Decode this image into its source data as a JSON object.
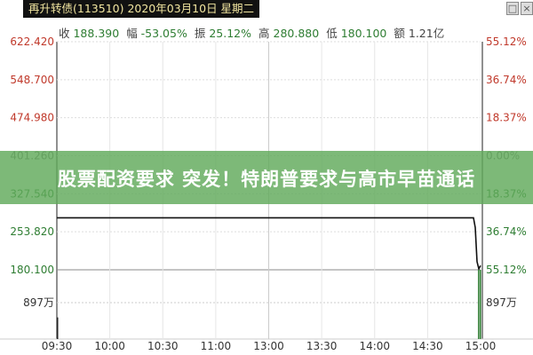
{
  "title": "再升转债(113510) 2020年03月10日 星期二",
  "window_buttons": [
    "□",
    "×"
  ],
  "stats": [
    {
      "label": "收",
      "value": "188.390"
    },
    {
      "label": "幅",
      "value": "-53.05%"
    },
    {
      "label": "振",
      "value": "25.12%"
    },
    {
      "label": "高",
      "value": "280.880"
    },
    {
      "label": "低",
      "value": "180.100"
    },
    {
      "label": "额",
      "value": "1.21亿"
    }
  ],
  "banner": "股票配资要求 突发！特朗普要求与高市早苗通话",
  "colors": {
    "up": "#c0392b",
    "down": "#2e7d32",
    "line": "#111111",
    "volume": "#2e7d32",
    "banner": "#60aa5a"
  },
  "chart_data": {
    "type": "line",
    "left_ticks": [
      "622.420",
      "548.700",
      "474.980",
      "401.260",
      "327.540",
      "253.820",
      "180.100"
    ],
    "right_ticks": [
      "55.12%",
      "36.74%",
      "18.37%",
      "0.00%",
      "18.37%",
      "36.74%",
      "55.12%"
    ],
    "volume_tick": "897万",
    "x_ticks": [
      "09:30",
      "10:00",
      "10:30",
      "11:00",
      "13:00",
      "13:30",
      "14:00",
      "14:30",
      "15:00"
    ],
    "ylim": [
      180.1,
      622.42
    ],
    "grid": true,
    "price_series": [
      {
        "t": "09:30",
        "v": 280.88
      },
      {
        "t": "14:56",
        "v": 280.88
      },
      {
        "t": "14:57",
        "v": 262.0
      },
      {
        "t": "14:58",
        "v": 196.0
      },
      {
        "t": "14:59",
        "v": 182.0
      },
      {
        "t": "15:00",
        "v": 188.39
      }
    ],
    "volume_series": [
      {
        "t": "09:30",
        "v": 500
      },
      {
        "t": "14:59",
        "v": 1600
      },
      {
        "t": "15:00",
        "v": 1600
      }
    ]
  }
}
